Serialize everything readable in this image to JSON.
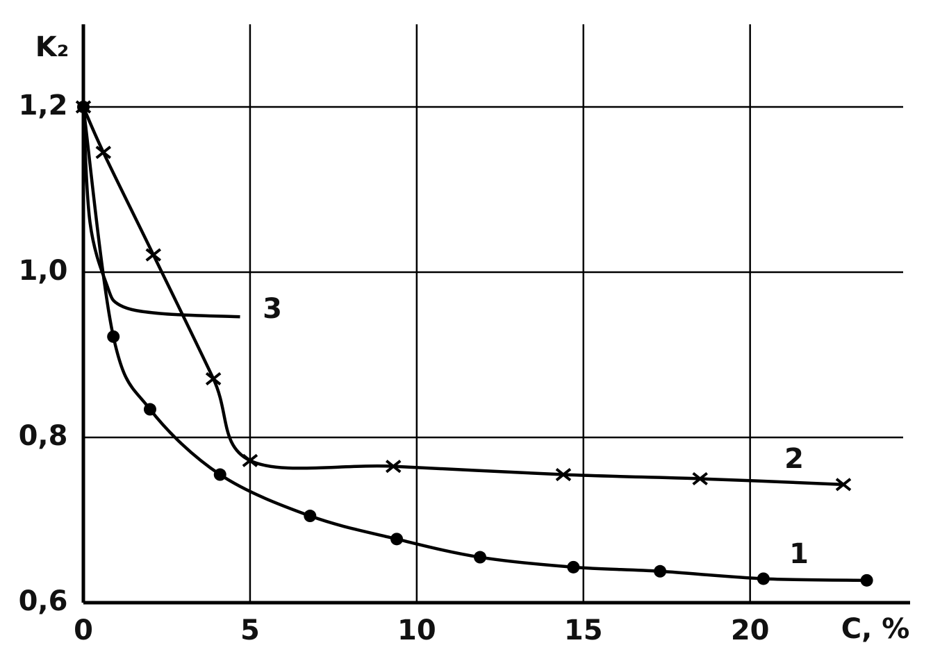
{
  "chart_data": {
    "type": "line",
    "x_label": "C, %",
    "y_label": "K₂",
    "xlim": [
      0,
      24.8
    ],
    "ylim": [
      0.6,
      1.3
    ],
    "xticks": [
      0,
      5,
      10,
      15,
      20
    ],
    "yticks": [
      {
        "value": 0.6,
        "label": "0,6"
      },
      {
        "value": 0.8,
        "label": "0,8"
      },
      {
        "value": 1.0,
        "label": "1,0"
      },
      {
        "value": 1.2,
        "label": "1,2"
      }
    ],
    "grid": true,
    "color": "#000000",
    "series": [
      {
        "name": "1",
        "marker": "dot",
        "x": [
          0,
          0.9,
          2.0,
          4.1,
          6.8,
          9.4,
          11.9,
          14.7,
          17.3,
          20.4,
          23.5
        ],
        "values": [
          1.2,
          0.922,
          0.834,
          0.755,
          0.705,
          0.677,
          0.655,
          0.643,
          0.638,
          0.629,
          0.627
        ]
      },
      {
        "name": "2",
        "marker": "cross",
        "x": [
          0,
          0.6,
          2.1,
          3.9,
          5.0,
          9.3,
          14.4,
          18.5,
          22.8
        ],
        "values": [
          1.2,
          1.145,
          1.021,
          0.871,
          0.772,
          0.765,
          0.755,
          0.75,
          0.743
        ]
      },
      {
        "name": "3",
        "marker": "none",
        "x": [
          0,
          0.2,
          0.7,
          1.1,
          2.3,
          4.7
        ],
        "values": [
          1.2,
          1.06,
          0.985,
          0.96,
          0.95,
          0.946
        ]
      }
    ]
  }
}
